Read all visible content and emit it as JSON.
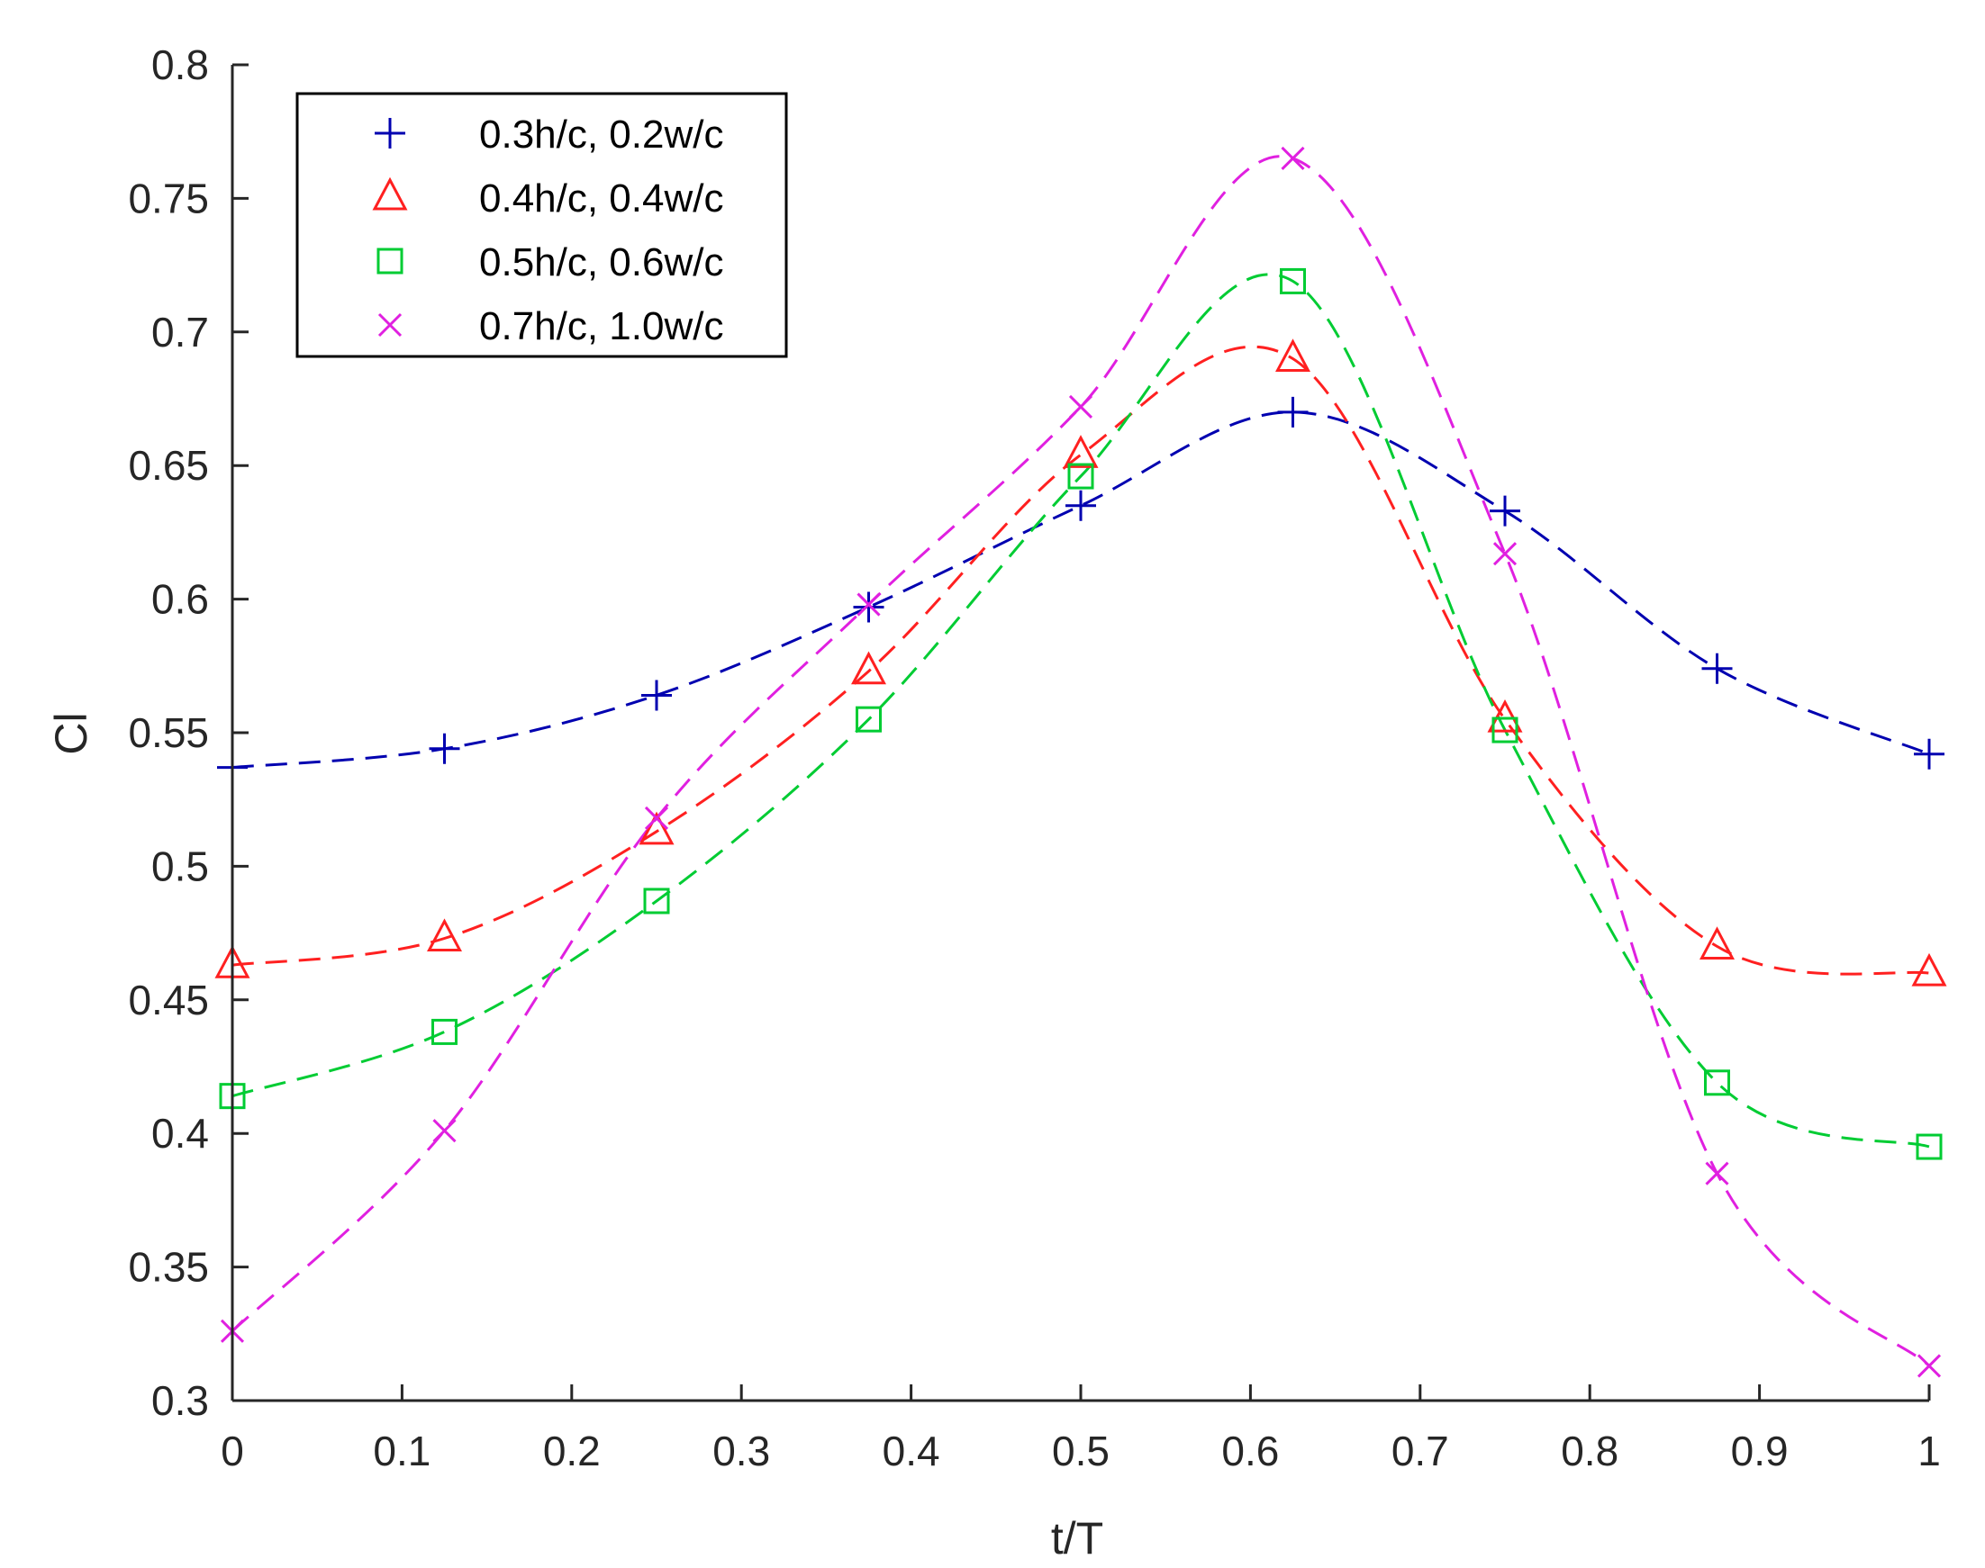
{
  "chart_data": {
    "type": "line",
    "title": "",
    "xlabel": "t/T",
    "ylabel": "Cl",
    "xlim": [
      0,
      1
    ],
    "ylim": [
      0.3,
      0.8
    ],
    "xticks": [
      0,
      0.1,
      0.2,
      0.3,
      0.4,
      0.5,
      0.6,
      0.7,
      0.8,
      0.9,
      1
    ],
    "xtick_labels": [
      "0",
      "0.1",
      "0.2",
      "0.3",
      "0.4",
      "0.5",
      "0.6",
      "0.7",
      "0.8",
      "0.9",
      "1"
    ],
    "yticks": [
      0.3,
      0.35,
      0.4,
      0.45,
      0.5,
      0.55,
      0.6,
      0.65,
      0.7,
      0.75,
      0.8
    ],
    "ytick_labels": [
      "0.3",
      "0.35",
      "0.4",
      "0.45",
      "0.5",
      "0.55",
      "0.6",
      "0.65",
      "0.7",
      "0.75",
      "0.8"
    ],
    "grid": false,
    "legend_position": "top-left",
    "line_style": "dashed",
    "x": [
      0,
      0.125,
      0.25,
      0.375,
      0.5,
      0.625,
      0.75,
      0.875,
      1
    ],
    "series": [
      {
        "name": "0.3h/c, 0.2w/c",
        "color": "#0000b0",
        "marker": "plus",
        "values": [
          0.537,
          0.544,
          0.564,
          0.597,
          0.635,
          0.67,
          0.633,
          0.574,
          0.542
        ]
      },
      {
        "name": "0.4h/c, 0.4w/c",
        "color": "#ff2020",
        "marker": "triangle",
        "values": [
          0.463,
          0.473,
          0.513,
          0.573,
          0.654,
          0.69,
          0.555,
          0.47,
          0.46
        ]
      },
      {
        "name": "0.5h/c, 0.6w/c",
        "color": "#00cc33",
        "marker": "square",
        "values": [
          0.414,
          0.438,
          0.487,
          0.555,
          0.646,
          0.719,
          0.551,
          0.419,
          0.395
        ]
      },
      {
        "name": "0.7h/c, 1.0w/c",
        "color": "#e020e0",
        "marker": "x",
        "values": [
          0.326,
          0.401,
          0.518,
          0.598,
          0.672,
          0.765,
          0.617,
          0.385,
          0.313
        ]
      }
    ]
  }
}
